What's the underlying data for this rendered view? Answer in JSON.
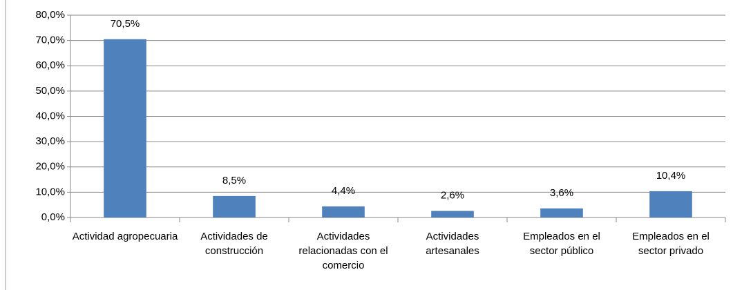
{
  "chart_data": {
    "type": "bar",
    "categories": [
      "Actividad agropecuaria",
      "Actividades de construcción",
      "Actividades relacionadas con el comercio",
      "Actividades artesanales",
      "Empleados en el sector público",
      "Empleados en el sector privado"
    ],
    "values": [
      70.5,
      8.5,
      4.4,
      2.6,
      3.6,
      10.4
    ],
    "value_labels": [
      "70,5%",
      "8,5%",
      "4,4%",
      "2,6%",
      "3,6%",
      "10,4%"
    ],
    "color": "#4f81bd",
    "ylim": [
      0,
      80
    ],
    "yticks": [
      {
        "value": 0,
        "label": "0,0%"
      },
      {
        "value": 10,
        "label": "10,0%"
      },
      {
        "value": 20,
        "label": "20,0%"
      },
      {
        "value": 30,
        "label": "30,0%"
      },
      {
        "value": 40,
        "label": "40,0%"
      },
      {
        "value": 50,
        "label": "50,0%"
      },
      {
        "value": 60,
        "label": "60,0%"
      },
      {
        "value": 70,
        "label": "70,0%"
      },
      {
        "value": 80,
        "label": "80,0%"
      }
    ],
    "grid": true
  }
}
